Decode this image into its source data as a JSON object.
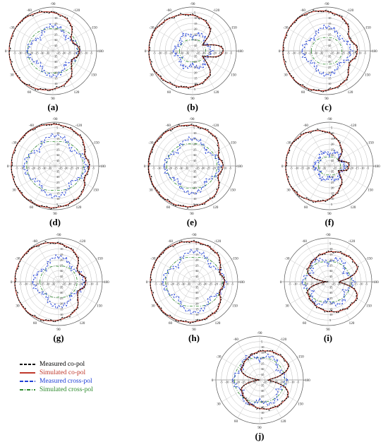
{
  "chart_data": {
    "type": "polar",
    "grid": true,
    "radial_ticks": [
      "-5",
      "-10",
      "-15",
      "-20",
      "-25",
      "-30",
      "-35"
    ],
    "angular_ticks": [
      "0",
      "30",
      "60",
      "90",
      "120",
      "150",
      "-180",
      "-150",
      "-120",
      "-90",
      "-60",
      "-30"
    ],
    "legend_placement": "bottom-left",
    "legend": [
      {
        "label": "Measured co-pol",
        "color": "#000000",
        "style": "dashed"
      },
      {
        "label": "Simulated co-pol",
        "color": "#c0392b",
        "style": "solid"
      },
      {
        "label": "Measured cross-pol",
        "color": "#1f3fd6",
        "style": "dashed"
      },
      {
        "label": "Simulated cross-pol",
        "color": "#2e8b2e",
        "style": "dashdot"
      }
    ],
    "panels": [
      {
        "label": "(a)",
        "co": {
          "back": -14,
          "lobes": [
            {
              "c": 90,
              "w": 55,
              "a": 4
            },
            {
              "c": 270,
              "w": 55,
              "a": 4
            },
            {
              "c": 0,
              "w": 30,
              "a": 2
            }
          ],
          "nulls": [
            {
              "c": 150,
              "w": 14,
              "d": 8
            },
            {
              "c": 210,
              "w": 14,
              "d": 8
            }
          ],
          "front": 0
        },
        "cx": {
          "base": -24,
          "amp": 7,
          "n": 4
        },
        "cs": {
          "base": -20,
          "amp": 3,
          "n": 2
        }
      },
      {
        "label": "(b)",
        "co": {
          "back": -18,
          "lobes": [
            {
              "c": 110,
              "w": 45,
              "a": 4
            },
            {
              "c": 250,
              "w": 45,
              "a": 4
            },
            {
              "c": 0,
              "w": 25,
              "a": 3
            }
          ],
          "nulls": [
            {
              "c": 150,
              "w": 10,
              "d": 14
            },
            {
              "c": 210,
              "w": 10,
              "d": 14
            },
            {
              "c": 180,
              "w": 12,
              "d": -6
            }
          ],
          "front": 0
        },
        "cx": {
          "base": -28,
          "amp": 5,
          "n": 6
        },
        "cs": {
          "base": -30,
          "amp": 2,
          "n": 2
        }
      },
      {
        "label": "(c)",
        "co": {
          "back": -12,
          "lobes": [
            {
              "c": 90,
              "w": 60,
              "a": 4
            },
            {
              "c": 270,
              "w": 60,
              "a": 4
            }
          ],
          "nulls": [
            {
              "c": 150,
              "w": 12,
              "d": 6
            },
            {
              "c": 210,
              "w": 12,
              "d": 6
            }
          ],
          "front": 0
        },
        "cx": {
          "base": -24,
          "amp": 6,
          "n": 4
        },
        "cs": {
          "base": -28,
          "amp": 2,
          "n": 2
        }
      },
      {
        "label": "(d)",
        "co": {
          "back": -6,
          "lobes": [
            {
              "c": 90,
              "w": 60,
              "a": 3
            },
            {
              "c": 270,
              "w": 60,
              "a": 3
            }
          ],
          "nulls": [
            {
              "c": 160,
              "w": 12,
              "d": 5
            },
            {
              "c": 200,
              "w": 12,
              "d": 5
            }
          ],
          "front": 0
        },
        "cx": {
          "base": -20,
          "amp": 8,
          "n": 4
        },
        "cs": {
          "base": -18,
          "amp": 4,
          "n": 2
        }
      },
      {
        "label": "(e)",
        "co": {
          "back": -8,
          "lobes": [
            {
              "c": 90,
              "w": 55,
              "a": 3
            },
            {
              "c": 270,
              "w": 55,
              "a": 3
            }
          ],
          "nulls": [
            {
              "c": 160,
              "w": 12,
              "d": 6
            },
            {
              "c": 200,
              "w": 12,
              "d": 6
            }
          ],
          "front": 0
        },
        "cx": {
          "base": -22,
          "amp": 7,
          "n": 4
        },
        "cs": {
          "base": -20,
          "amp": 3,
          "n": 2
        }
      },
      {
        "label": "(f)",
        "co": {
          "back": -20,
          "lobes": [
            {
              "c": 60,
              "w": 50,
              "a": 3
            },
            {
              "c": 300,
              "w": 50,
              "a": 3
            },
            {
              "c": 130,
              "w": 20,
              "a": -4
            },
            {
              "c": 230,
              "w": 20,
              "a": -4
            }
          ],
          "nulls": [
            {
              "c": 150,
              "w": 10,
              "d": 8
            },
            {
              "c": 210,
              "w": 10,
              "d": 8
            }
          ],
          "front": 0
        },
        "cx": {
          "base": -30,
          "amp": 4,
          "n": 6
        },
        "cs": {
          "base": -32,
          "amp": 2,
          "n": 2
        }
      },
      {
        "label": "(g)",
        "co": {
          "back": -14,
          "lobes": [
            {
              "c": 80,
              "w": 55,
              "a": 4
            },
            {
              "c": 280,
              "w": 55,
              "a": 4
            }
          ],
          "nulls": [
            {
              "c": 150,
              "w": 12,
              "d": 7
            },
            {
              "c": 210,
              "w": 12,
              "d": 7
            }
          ],
          "front": 0
        },
        "cx": {
          "base": -24,
          "amp": 7,
          "n": 4
        },
        "cs": {
          "base": -26,
          "amp": 3,
          "n": 2
        }
      },
      {
        "label": "(h)",
        "co": {
          "back": -9,
          "lobes": [
            {
              "c": 90,
              "w": 60,
              "a": 3
            },
            {
              "c": 270,
              "w": 60,
              "a": 3
            }
          ],
          "nulls": [
            {
              "c": 160,
              "w": 12,
              "d": 6
            },
            {
              "c": 200,
              "w": 12,
              "d": 6
            }
          ],
          "front": 0
        },
        "cx": {
          "base": -20,
          "amp": 8,
          "n": 4
        },
        "cs": {
          "base": -18,
          "amp": 4,
          "n": 2
        }
      },
      {
        "label": "(i)",
        "co": {
          "back": -10,
          "lobes": [
            {
              "c": 90,
              "w": 60,
              "a": 4
            },
            {
              "c": 270,
              "w": 60,
              "a": 4
            }
          ],
          "nulls": [
            {
              "c": 0,
              "w": 10,
              "d": 20
            },
            {
              "c": 180,
              "w": 10,
              "d": 20
            }
          ],
          "front": -20
        },
        "cx": {
          "base": -24,
          "amp": 7,
          "n": 6
        },
        "cs": {
          "base": -22,
          "amp": 3,
          "n": 2
        }
      },
      {
        "label": "(j)",
        "co": {
          "back": -10,
          "lobes": [
            {
              "c": 90,
              "w": 55,
              "a": 4
            },
            {
              "c": 270,
              "w": 55,
              "a": 4
            }
          ],
          "nulls": [
            {
              "c": 0,
              "w": 10,
              "d": 22
            },
            {
              "c": 180,
              "w": 10,
              "d": 22
            }
          ],
          "front": -22
        },
        "cx": {
          "base": -22,
          "amp": 6,
          "n": 6
        },
        "cs": {
          "base": -20,
          "amp": 3,
          "n": 2
        }
      }
    ]
  }
}
